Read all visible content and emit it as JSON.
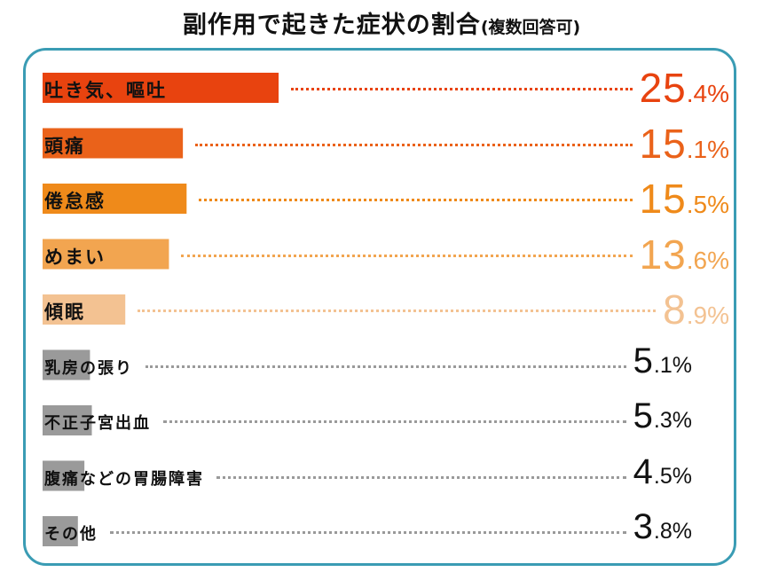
{
  "title": {
    "main": "副作用で起きた症状の割合",
    "sub": "(複数回答可)"
  },
  "chart_data": {
    "type": "bar",
    "title": "副作用で起きた症状の割合(複数回答可)",
    "categories": [
      "吐き気、嘔吐",
      "頭痛",
      "倦怠感",
      "めまい",
      "傾眠",
      "乳房の張り",
      "不正子宮出血",
      "腹痛などの胃腸障害",
      "その他"
    ],
    "values": [
      25.4,
      15.1,
      15.5,
      13.6,
      8.9,
      5.1,
      5.3,
      4.5,
      3.8
    ],
    "value_labels": [
      {
        "int": "25",
        "dec": ".4%"
      },
      {
        "int": "15",
        "dec": ".1%"
      },
      {
        "int": "15",
        "dec": ".5%"
      },
      {
        "int": "13",
        "dec": ".6%"
      },
      {
        "int": "8",
        "dec": ".9%"
      },
      {
        "int": "5",
        "dec": ".1%"
      },
      {
        "int": "5",
        "dec": ".3%"
      },
      {
        "int": "4",
        "dec": ".5%"
      },
      {
        "int": "3",
        "dec": ".8%"
      }
    ],
    "unit": "%",
    "colors": [
      "#e8430f",
      "#ea621a",
      "#ef8a1a",
      "#f2a550",
      "#f3c292",
      "#9a9a9a",
      "#9a9a9a",
      "#9a9a9a",
      "#9a9a9a"
    ],
    "value_colors": [
      "#e8430f",
      "#ea621a",
      "#ef8a1a",
      "#f2a550",
      "#f3c292",
      "#111111",
      "#111111",
      "#111111",
      "#111111"
    ],
    "frame_color": "#3a9cb4",
    "xlim": [
      0,
      25.4
    ],
    "grid": false,
    "legend": "none"
  }
}
